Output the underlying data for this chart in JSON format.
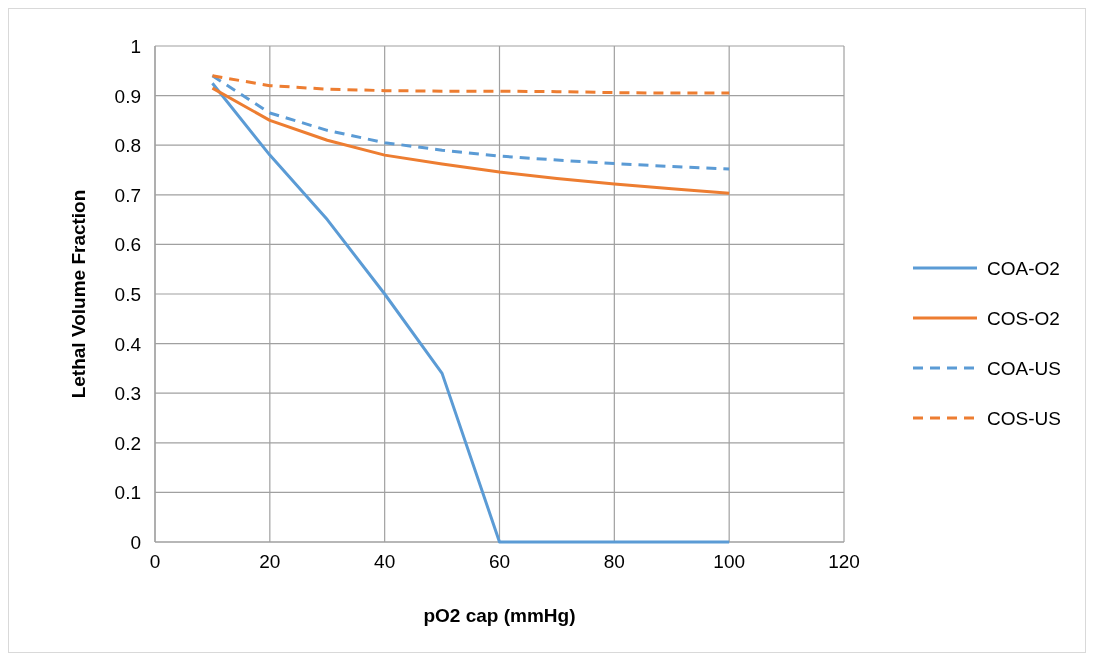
{
  "chart_data": {
    "type": "line",
    "xlabel": "pO2 cap (mmHg)",
    "ylabel": "Lethal Volume Fraction",
    "x": [
      10,
      20,
      30,
      40,
      50,
      60,
      70,
      80,
      90,
      100
    ],
    "series": [
      {
        "name": "COA-O2",
        "color": "#5b9bd5",
        "line_style": "solid",
        "values": [
          0.925,
          0.78,
          0.65,
          0.5,
          0.34,
          0,
          0,
          0,
          0,
          0
        ]
      },
      {
        "name": "COS-O2",
        "color": "#ed7d31",
        "line_style": "solid",
        "values": [
          0.915,
          0.85,
          0.81,
          0.78,
          0.762,
          0.746,
          0.733,
          0.722,
          0.712,
          0.703
        ]
      },
      {
        "name": "COA-US",
        "color": "#5b9bd5",
        "line_style": "dashed",
        "values": [
          0.94,
          0.865,
          0.83,
          0.805,
          0.79,
          0.778,
          0.77,
          0.763,
          0.757,
          0.752
        ]
      },
      {
        "name": "COS-US",
        "color": "#ed7d31",
        "line_style": "dashed",
        "values": [
          0.94,
          0.92,
          0.913,
          0.91,
          0.909,
          0.909,
          0.908,
          0.906,
          0.905,
          0.905
        ]
      }
    ],
    "xlim": [
      0,
      120
    ],
    "xticks": [
      0,
      20,
      40,
      60,
      80,
      100,
      120
    ],
    "ylim": [
      0,
      1
    ],
    "yticks": [
      0,
      0.1,
      0.2,
      0.3,
      0.4,
      0.5,
      0.6,
      0.7,
      0.8,
      0.9,
      1
    ],
    "grid": true,
    "legend": "right",
    "marker": "none"
  }
}
